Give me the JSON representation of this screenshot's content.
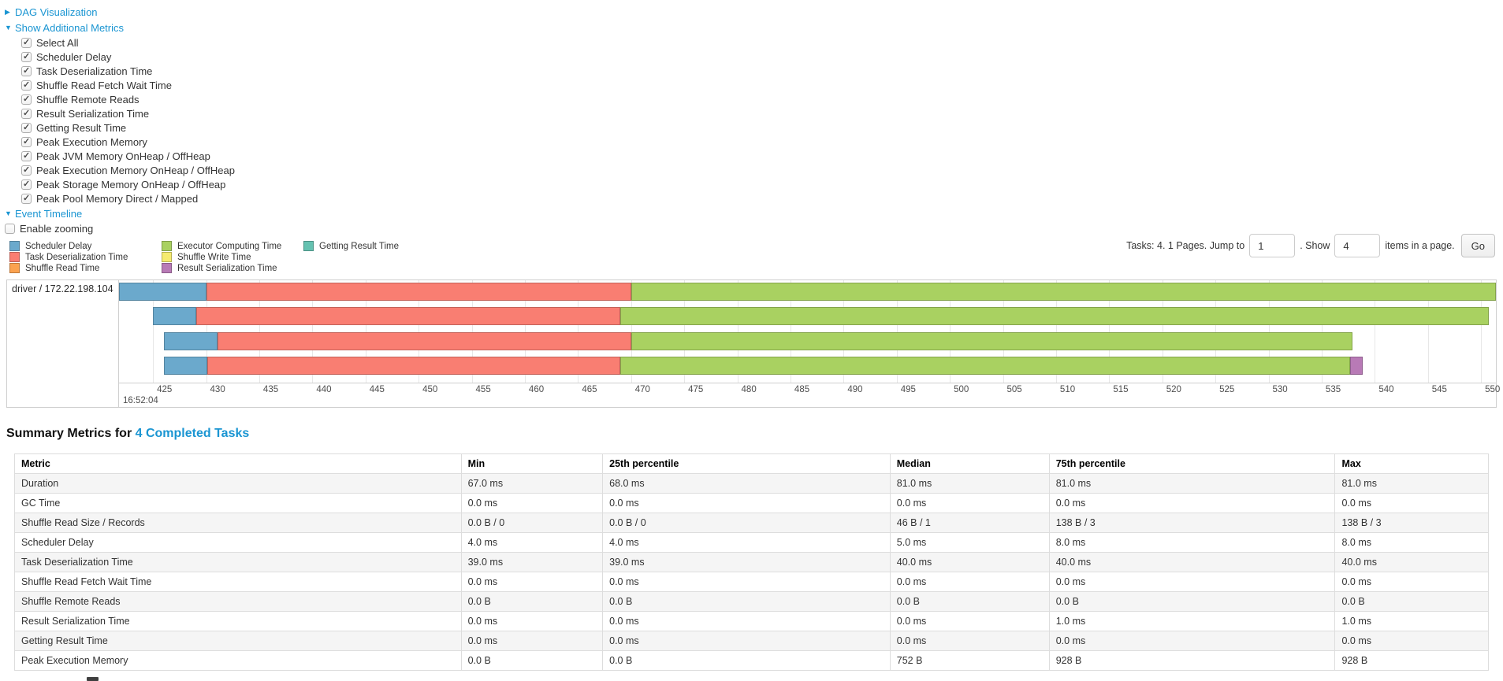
{
  "controls": {
    "dag_label": "DAG Visualization",
    "metrics_label": "Show Additional Metrics",
    "timeline_label": "Event Timeline",
    "enable_zooming_label": "Enable zooming",
    "checkboxes": [
      "Select All",
      "Scheduler Delay",
      "Task Deserialization Time",
      "Shuffle Read Fetch Wait Time",
      "Shuffle Remote Reads",
      "Result Serialization Time",
      "Getting Result Time",
      "Peak Execution Memory",
      "Peak JVM Memory OnHeap / OffHeap",
      "Peak Execution Memory OnHeap / OffHeap",
      "Peak Storage Memory OnHeap / OffHeap",
      "Peak Pool Memory Direct / Mapped"
    ]
  },
  "legend": {
    "columns": [
      [
        {
          "label": "Scheduler Delay",
          "type": "scheduler_delay"
        },
        {
          "label": "Task Deserialization Time",
          "type": "task_deserialization"
        },
        {
          "label": "Shuffle Read Time",
          "type": "shuffle_read"
        }
      ],
      [
        {
          "label": "Executor Computing Time",
          "type": "executor_computing"
        },
        {
          "label": "Shuffle Write Time",
          "type": "shuffle_write"
        },
        {
          "label": "Result Serialization Time",
          "type": "result_serialization"
        }
      ],
      [
        {
          "label": "Getting Result Time",
          "type": "getting_result"
        }
      ]
    ]
  },
  "pagination": {
    "tasks_text": "Tasks: 4. 1 Pages. Jump to",
    "jump_value": "1",
    "show_text": ". Show",
    "show_value": "4",
    "items_text": "items in a page.",
    "go_label": "Go"
  },
  "chart_data": {
    "type": "timeline-gantt",
    "group_label": "driver / 172.22.198.104",
    "axis": {
      "range": [
        421.8,
        551.4
      ],
      "ticks": [
        425,
        430,
        435,
        440,
        445,
        450,
        455,
        460,
        465,
        470,
        475,
        480,
        485,
        490,
        495,
        500,
        505,
        510,
        515,
        520,
        525,
        530,
        535,
        540,
        545,
        550
      ],
      "unit": "ms",
      "major_label": "16:52:04"
    },
    "colors": {
      "scheduler_delay": "#6BA9CC",
      "task_deserialization": "#F97E72",
      "shuffle_read": "#FBA24F",
      "executor_computing": "#A9D161",
      "shuffle_write": "#F5EB6F",
      "result_serialization": "#B87AB6",
      "getting_result": "#65C2B1"
    },
    "tasks": [
      {
        "segments": [
          {
            "type": "scheduler_delay",
            "start": 421.8,
            "end": 430.0
          },
          {
            "type": "task_deserialization",
            "start": 430.0,
            "end": 470.0
          },
          {
            "type": "executor_computing",
            "start": 470.0,
            "end": 551.4
          }
        ]
      },
      {
        "segments": [
          {
            "type": "scheduler_delay",
            "start": 425.0,
            "end": 429.1
          },
          {
            "type": "task_deserialization",
            "start": 429.1,
            "end": 469.0
          },
          {
            "type": "executor_computing",
            "start": 469.0,
            "end": 550.7
          }
        ]
      },
      {
        "segments": [
          {
            "type": "scheduler_delay",
            "start": 426.0,
            "end": 431.1
          },
          {
            "type": "task_deserialization",
            "start": 431.1,
            "end": 470.0
          },
          {
            "type": "executor_computing",
            "start": 470.0,
            "end": 537.9
          }
        ]
      },
      {
        "segments": [
          {
            "type": "scheduler_delay",
            "start": 426.0,
            "end": 430.1
          },
          {
            "type": "task_deserialization",
            "start": 430.1,
            "end": 469.0
          },
          {
            "type": "executor_computing",
            "start": 469.0,
            "end": 537.7
          },
          {
            "type": "result_serialization",
            "start": 537.7,
            "end": 538.9
          }
        ]
      }
    ]
  },
  "summary": {
    "title_prefix": "Summary Metrics for",
    "title_link": "4 Completed Tasks",
    "table": {
      "headers": [
        "Metric",
        "Min",
        "25th percentile",
        "Median",
        "75th percentile",
        "Max"
      ],
      "col_widths": [
        "30.3%",
        "9.6%",
        "19.5%",
        "10.8%",
        "19.4%",
        "10.4%"
      ],
      "rows": [
        [
          "Duration",
          "67.0 ms",
          "68.0 ms",
          "81.0 ms",
          "81.0 ms",
          "81.0 ms"
        ],
        [
          "GC Time",
          "0.0 ms",
          "0.0 ms",
          "0.0 ms",
          "0.0 ms",
          "0.0 ms"
        ],
        [
          "Shuffle Read Size / Records",
          "0.0 B / 0",
          "0.0 B / 0",
          "46 B / 1",
          "138 B / 3",
          "138 B / 3"
        ],
        [
          "Scheduler Delay",
          "4.0 ms",
          "4.0 ms",
          "5.0 ms",
          "8.0 ms",
          "8.0 ms"
        ],
        [
          "Task Deserialization Time",
          "39.0 ms",
          "39.0 ms",
          "40.0 ms",
          "40.0 ms",
          "40.0 ms"
        ],
        [
          "Shuffle Read Fetch Wait Time",
          "0.0 ms",
          "0.0 ms",
          "0.0 ms",
          "0.0 ms",
          "0.0 ms"
        ],
        [
          "Shuffle Remote Reads",
          "0.0 B",
          "0.0 B",
          "0.0 B",
          "0.0 B",
          "0.0 B"
        ],
        [
          "Result Serialization Time",
          "0.0 ms",
          "0.0 ms",
          "0.0 ms",
          "1.0 ms",
          "1.0 ms"
        ],
        [
          "Getting Result Time",
          "0.0 ms",
          "0.0 ms",
          "0.0 ms",
          "0.0 ms",
          "0.0 ms"
        ],
        [
          "Peak Execution Memory",
          "0.0 B",
          "0.0 B",
          "752 B",
          "928 B",
          "928 B"
        ]
      ]
    }
  }
}
